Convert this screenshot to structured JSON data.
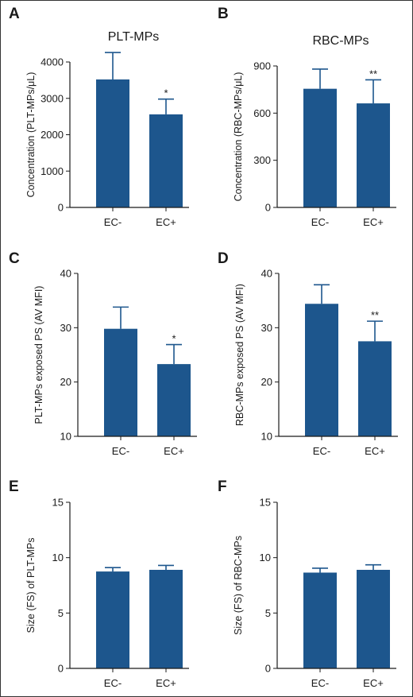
{
  "colors": {
    "bar": "#1d568d",
    "axis": "#1a1a1a"
  },
  "chart_data": [
    {
      "panel": "A",
      "type": "bar",
      "title": "PLT-MPs",
      "ylabel": "Concentration (PLT-MPs/μL)",
      "categories": [
        "EC-",
        "EC+"
      ],
      "values": [
        3520,
        2560
      ],
      "errors": [
        740,
        420
      ],
      "significance": [
        "",
        "*"
      ],
      "ylim": [
        0,
        4000
      ],
      "yticks": [
        0,
        1000,
        2000,
        3000,
        4000
      ]
    },
    {
      "panel": "B",
      "type": "bar",
      "title": "RBC-MPs",
      "ylabel": "Concentration (RBC-MPs/μL)",
      "categories": [
        "EC-",
        "EC+"
      ],
      "values": [
        755,
        662
      ],
      "errors": [
        125,
        150
      ],
      "significance": [
        "",
        "**"
      ],
      "ylim": [
        0,
        900
      ],
      "yticks": [
        0,
        300,
        600,
        900
      ]
    },
    {
      "panel": "C",
      "type": "bar",
      "title": "",
      "ylabel": "PLT-MPs exposed PS (AV MFI)",
      "categories": [
        "EC-",
        "EC+"
      ],
      "values": [
        29.8,
        23.3
      ],
      "errors": [
        4.0,
        3.6
      ],
      "significance": [
        "",
        "*"
      ],
      "ylim": [
        10,
        40
      ],
      "yticks": [
        10,
        20,
        30,
        40
      ]
    },
    {
      "panel": "D",
      "type": "bar",
      "title": "",
      "ylabel": "RBC-MPs exposed PS (AV MFI)",
      "categories": [
        "EC-",
        "EC+"
      ],
      "values": [
        34.4,
        27.5
      ],
      "errors": [
        3.5,
        3.7
      ],
      "significance": [
        "",
        "**"
      ],
      "ylim": [
        10,
        40
      ],
      "yticks": [
        10,
        20,
        30,
        40
      ]
    },
    {
      "panel": "E",
      "type": "bar",
      "title": "",
      "ylabel": "Size (FS) of PLT-MPs",
      "categories": [
        "EC-",
        "EC+"
      ],
      "values": [
        8.75,
        8.9
      ],
      "errors": [
        0.35,
        0.4
      ],
      "significance": [
        "",
        ""
      ],
      "ylim": [
        0,
        15
      ],
      "yticks": [
        0,
        5,
        10,
        15
      ]
    },
    {
      "panel": "F",
      "type": "bar",
      "title": "",
      "ylabel": "Size (FS) of RBC-MPs",
      "categories": [
        "EC-",
        "EC+"
      ],
      "values": [
        8.65,
        8.9
      ],
      "errors": [
        0.4,
        0.45
      ],
      "significance": [
        "",
        ""
      ],
      "ylim": [
        0,
        15
      ],
      "yticks": [
        0,
        5,
        10,
        15
      ]
    }
  ]
}
